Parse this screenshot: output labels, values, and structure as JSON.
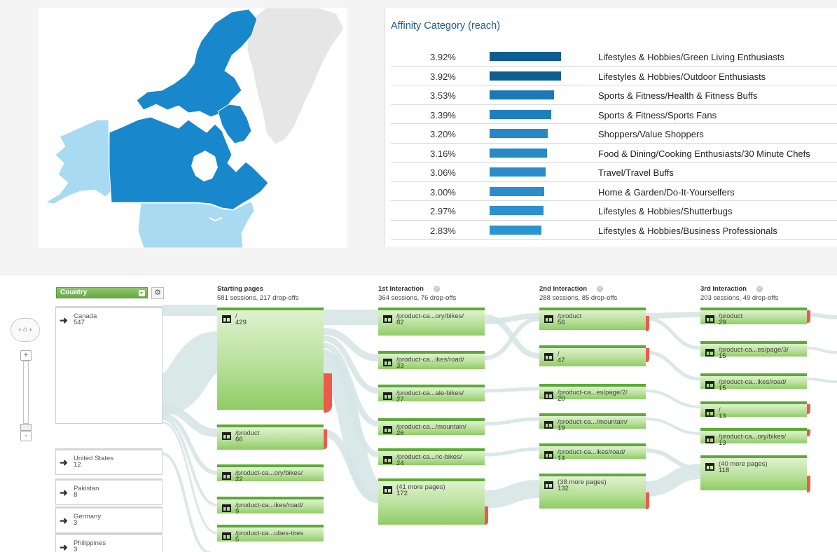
{
  "affinity": {
    "title": "Affinity Category (reach)",
    "rows": [
      {
        "pct": "3.92%",
        "value": 3.92,
        "category": "Lifestyles & Hobbies/Green Living Enthusiasts"
      },
      {
        "pct": "3.92%",
        "value": 3.92,
        "category": "Lifestyles & Hobbies/Outdoor Enthusiasts"
      },
      {
        "pct": "3.53%",
        "value": 3.53,
        "category": "Sports & Fitness/Health & Fitness Buffs"
      },
      {
        "pct": "3.39%",
        "value": 3.39,
        "category": "Sports & Fitness/Sports Fans"
      },
      {
        "pct": "3.20%",
        "value": 3.2,
        "category": "Shoppers/Value Shoppers"
      },
      {
        "pct": "3.16%",
        "value": 3.16,
        "category": "Food & Dining/Cooking Enthusiasts/30 Minute Chefs"
      },
      {
        "pct": "3.06%",
        "value": 3.06,
        "category": "Travel/Travel Buffs"
      },
      {
        "pct": "3.00%",
        "value": 3.0,
        "category": "Home & Garden/Do-It-Yourselfers"
      },
      {
        "pct": "2.97%",
        "value": 2.97,
        "category": "Lifestyles & Hobbies/Shutterbugs"
      },
      {
        "pct": "2.83%",
        "value": 2.83,
        "category": "Lifestyles & Hobbies/Business Professionals"
      }
    ]
  },
  "colors": {
    "map_dark": "#1987cb",
    "map_light": "#a8daf2",
    "map_gray": "#e6e6e6",
    "bar_dark": "#0d5f91",
    "bar_light": "#2b95d0",
    "node_green": "#8fcc65",
    "dropoff_red": "#ee5a4a"
  },
  "flow": {
    "dimension": "Country",
    "countries": [
      {
        "name": "Canada",
        "count": "547"
      },
      {
        "name": "United States",
        "count": "12"
      },
      {
        "name": "Pakistan",
        "count": "8"
      },
      {
        "name": "Germany",
        "count": "3"
      },
      {
        "name": "Philippines",
        "count": "3"
      }
    ],
    "columns": [
      {
        "title": "Starting pages",
        "summary": "581 sessions, 217 drop-offs",
        "closable": false,
        "nodes": [
          {
            "label": "/",
            "count": "429"
          },
          {
            "label": "/product",
            "count": "66"
          },
          {
            "label": "/product-ca...ory/bikes/",
            "count": "22"
          },
          {
            "label": "/product-ca...ikes/road/",
            "count": "9"
          },
          {
            "label": "/product-ca...ubes-tires",
            "count": "5"
          }
        ]
      },
      {
        "title": "1st Interaction",
        "summary": "364 sessions, 76 drop-offs",
        "closable": true,
        "nodes": [
          {
            "label": "/product-ca...ory/bikes/",
            "count": "82"
          },
          {
            "label": "/product-ca...ikes/road/",
            "count": "33"
          },
          {
            "label": "/product-ca...ale-bikes/",
            "count": "27"
          },
          {
            "label": "/product-ca.../mountain/",
            "count": "26"
          },
          {
            "label": "/product-ca...ric-bikes/",
            "count": "24"
          },
          {
            "label": "(41 more pages)",
            "count": "172"
          }
        ]
      },
      {
        "title": "2nd Interaction",
        "summary": "288 sessions, 85 drop-offs",
        "closable": true,
        "nodes": [
          {
            "label": "/product",
            "count": "56"
          },
          {
            "label": "/",
            "count": "47"
          },
          {
            "label": "/product-ca...es/page/2/",
            "count": "20"
          },
          {
            "label": "/product-ca.../mountain/",
            "count": "19"
          },
          {
            "label": "/product-ca...ikes/road/",
            "count": "14"
          },
          {
            "label": "(38 more pages)",
            "count": "132"
          }
        ]
      },
      {
        "title": "3rd Interaction",
        "summary": "203 sessions, 49 drop-offs",
        "closable": true,
        "nodes": [
          {
            "label": "/product",
            "count": "29"
          },
          {
            "label": "/product-ca...es/page/3/",
            "count": "15"
          },
          {
            "label": "/product-ca...ikes/road/",
            "count": "15"
          },
          {
            "label": "/",
            "count": "13"
          },
          {
            "label": "/product-ca...ory/bikes/",
            "count": "13"
          },
          {
            "label": "(40 more pages)",
            "count": "118"
          }
        ]
      }
    ]
  }
}
